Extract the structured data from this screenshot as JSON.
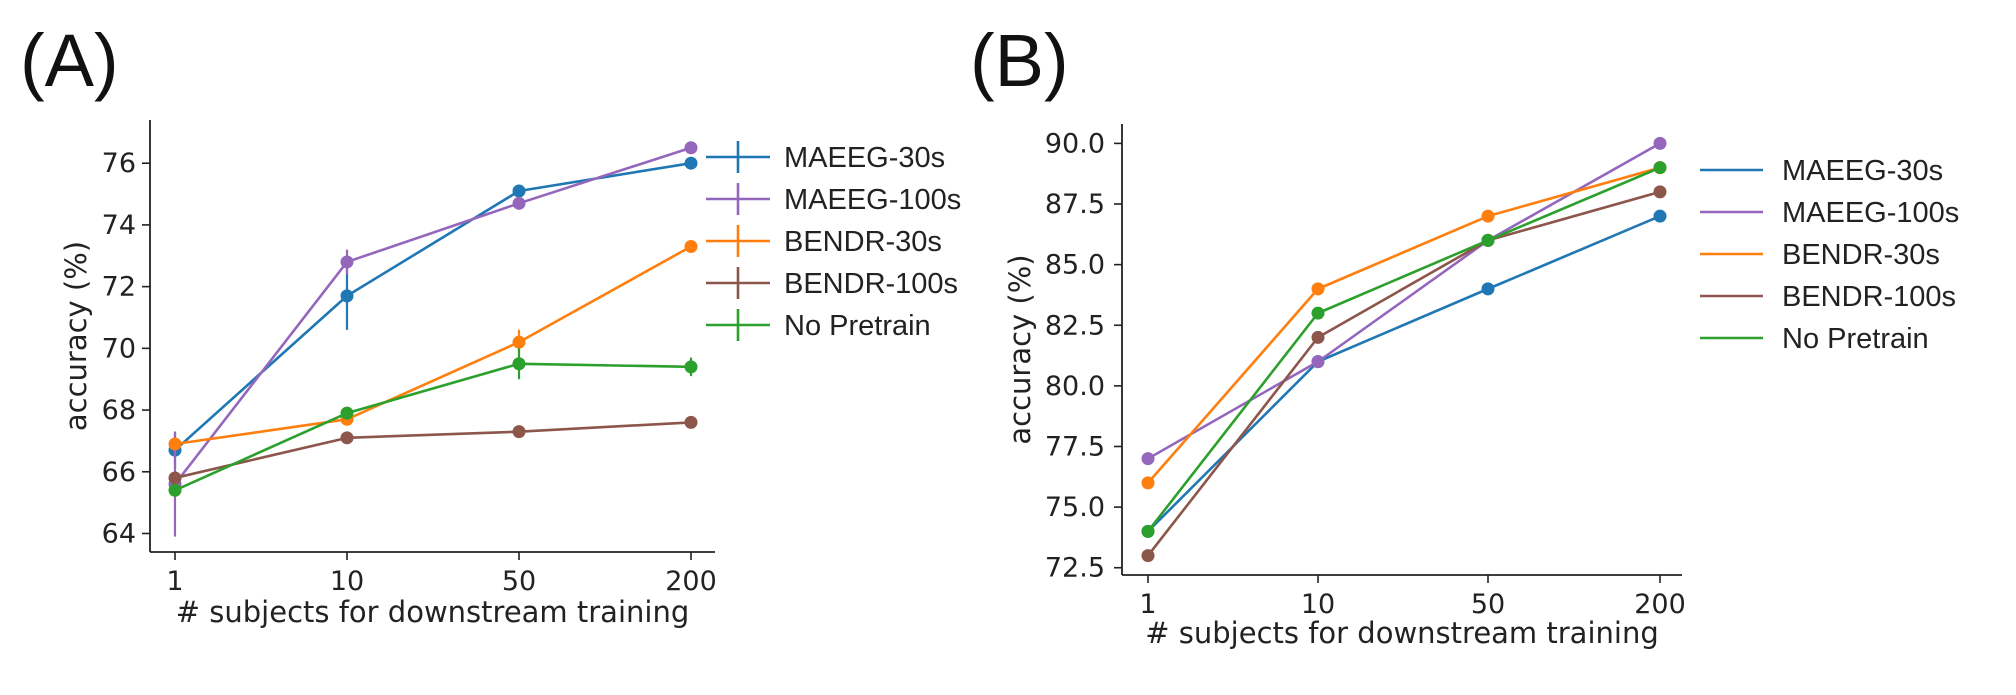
{
  "panels": {
    "a_label": "(A)",
    "b_label": "(B)"
  },
  "chart_data": [
    {
      "type": "line",
      "panel": "(A)",
      "title": "",
      "xlabel": "# subjects for downstream training",
      "ylabel": "accuracy (%)",
      "x": [
        "1",
        "10",
        "50",
        "200"
      ],
      "ylim": [
        63.4,
        77.4
      ],
      "yticks": [
        64,
        66,
        68,
        70,
        72,
        74,
        76
      ],
      "ytick_labels": [
        "64",
        "66",
        "68",
        "70",
        "72",
        "74",
        "76"
      ],
      "grid": false,
      "legend_position": "right",
      "legend_style": "errorbar",
      "series": [
        {
          "name": "MAEEG-30s",
          "color": "#1f77b4",
          "values": [
            66.7,
            71.7,
            75.1,
            76.0
          ],
          "errors": [
            0.6,
            1.1,
            0.1,
            0.1
          ]
        },
        {
          "name": "MAEEG-100s",
          "color": "#9467bd",
          "values": [
            65.6,
            72.8,
            74.7,
            76.5
          ],
          "errors": [
            1.7,
            0.4,
            0.1,
            0.1
          ]
        },
        {
          "name": "BENDR-30s",
          "color": "#ff7f0e",
          "values": [
            66.9,
            67.7,
            70.2,
            73.3
          ],
          "errors": [
            0.1,
            0.1,
            0.4,
            0.1
          ]
        },
        {
          "name": "BENDR-100s",
          "color": "#8c564b",
          "values": [
            65.8,
            67.1,
            67.3,
            67.6
          ],
          "errors": [
            0.1,
            0.1,
            0.1,
            0.1
          ]
        },
        {
          "name": "No Pretrain",
          "color": "#2ca02c",
          "values": [
            65.4,
            67.9,
            69.5,
            69.4
          ],
          "errors": [
            0.1,
            0.2,
            0.5,
            0.3
          ]
        }
      ]
    },
    {
      "type": "line",
      "panel": "(B)",
      "title": "",
      "xlabel": "# subjects for downstream training",
      "ylabel": "accuracy (%)",
      "x": [
        "1",
        "10",
        "50",
        "200"
      ],
      "ylim": [
        72.2,
        90.8
      ],
      "yticks": [
        72.5,
        75.0,
        77.5,
        80.0,
        82.5,
        85.0,
        87.5,
        90.0
      ],
      "ytick_labels": [
        "72.5",
        "75.0",
        "77.5",
        "80.0",
        "82.5",
        "85.0",
        "87.5",
        "90.0"
      ],
      "grid": false,
      "legend_position": "right",
      "legend_style": "line",
      "series": [
        {
          "name": "MAEEG-30s",
          "color": "#1f77b4",
          "values": [
            74,
            81,
            84,
            87
          ]
        },
        {
          "name": "MAEEG-100s",
          "color": "#9467bd",
          "values": [
            77,
            81,
            86,
            90
          ]
        },
        {
          "name": "BENDR-30s",
          "color": "#ff7f0e",
          "values": [
            76,
            84,
            87,
            89
          ]
        },
        {
          "name": "BENDR-100s",
          "color": "#8c564b",
          "values": [
            73,
            82,
            86,
            88
          ]
        },
        {
          "name": "No Pretrain",
          "color": "#2ca02c",
          "values": [
            74,
            83,
            86,
            89
          ]
        }
      ]
    }
  ]
}
